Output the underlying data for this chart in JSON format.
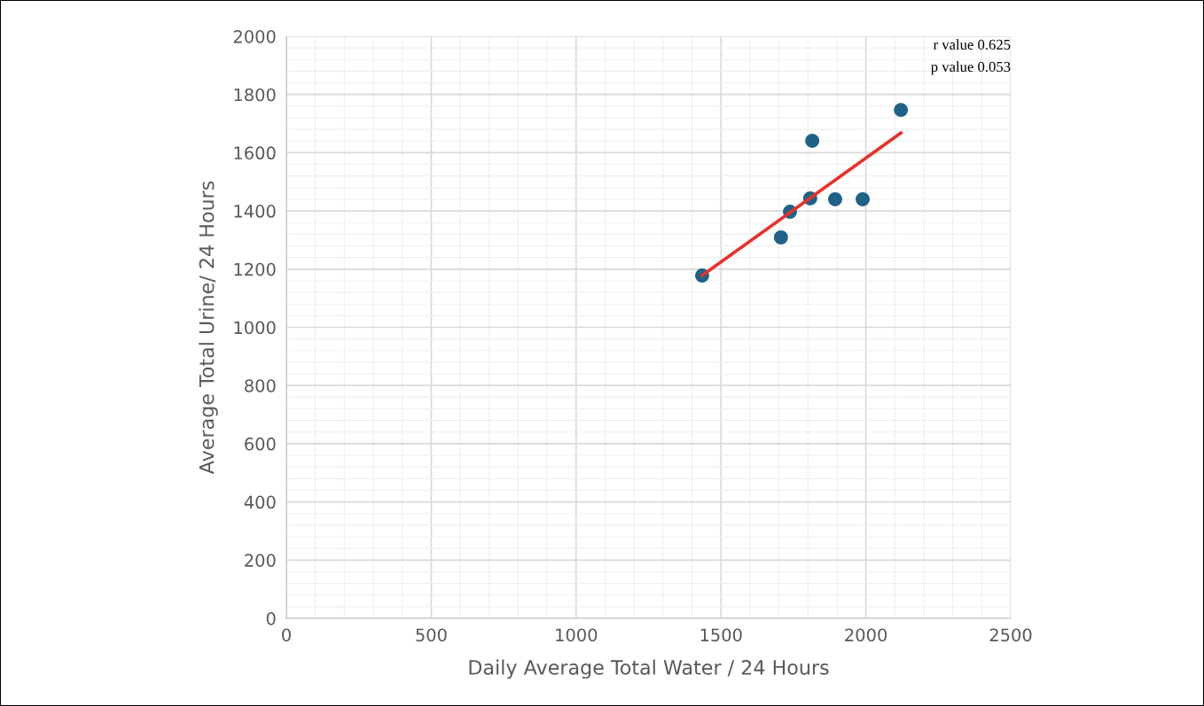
{
  "chart_data": {
    "type": "scatter",
    "xlabel": "Daily Average Total Water / 24 Hours",
    "ylabel": "Average Total Urine/ 24 Hours",
    "series": [
      {
        "color": "#1f6288",
        "marker": "circle",
        "x": [
          1435,
          1707,
          1738,
          1808,
          1815,
          1894,
          1989,
          2121
        ],
        "values": [
          1178,
          1309,
          1397,
          1443,
          1641,
          1440,
          1440,
          1747
        ]
      },
      {
        "type": "line",
        "color": "#e8302a",
        "marker": "none",
        "line_style": "solid",
        "x": [
          1435,
          2121
        ],
        "values": [
          1178,
          1668
        ]
      }
    ],
    "xlim": [
      0,
      2500
    ],
    "xticks": [
      0,
      500,
      1000,
      1500,
      2000,
      2500
    ],
    "ylim": [
      0,
      2000
    ],
    "yticks": [
      0,
      200,
      400,
      600,
      800,
      1000,
      1200,
      1400,
      1600,
      1800,
      2000
    ],
    "grid": true,
    "legend": false,
    "annotations": [
      "r value 0.625",
      "p value 0.053"
    ]
  }
}
